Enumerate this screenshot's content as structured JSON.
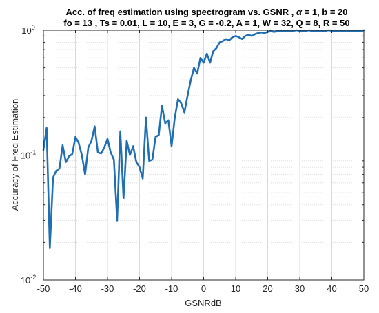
{
  "chart_data": {
    "type": "line",
    "title": {
      "line1_prefix": "Acc. of freq estimation using spectrogram vs. GSNR ,",
      "line1_symbol": "α",
      "line1_suffix": "= 1, b = 20",
      "line2": "fo = 13 , Ts = 0.01,   L = 10,   E = 3, G = -0.2,   A = 1, W = 32, Q = 8, R = 50"
    },
    "xlabel": "GSNRdB",
    "ylabel": "Accuracy of Freq Estimation",
    "xlim": [
      -50,
      50
    ],
    "ylim": [
      0.01,
      1
    ],
    "yscale": "log",
    "grid": true,
    "x_ticks": [
      "-50",
      "-40",
      "-30",
      "-20",
      "-10",
      "0",
      "10",
      "20",
      "30",
      "40",
      "50"
    ],
    "x_tick_values": [
      -50,
      -40,
      -30,
      -20,
      -10,
      0,
      10,
      20,
      30,
      40,
      50
    ],
    "y_ticks": [
      {
        "value": 0.01,
        "base": "10",
        "exp": "-2"
      },
      {
        "value": 0.1,
        "base": "10",
        "exp": "-1"
      },
      {
        "value": 1,
        "base": "10",
        "exp": "0"
      }
    ],
    "line_color": "#1f6fb2",
    "series": [
      {
        "x": [
          -50,
          -49,
          -48,
          -47,
          -46,
          -45,
          -44,
          -43,
          -42,
          -41,
          -40,
          -39,
          -38,
          -37,
          -36,
          -35,
          -34,
          -33,
          -32,
          -31,
          -30,
          -29,
          -28,
          -27,
          -26,
          -25,
          -24,
          -23,
          -22,
          -21,
          -20,
          -19,
          -18,
          -17,
          -16,
          -15,
          -14,
          -13,
          -12,
          -11,
          -10,
          -9,
          -8,
          -7,
          -6,
          -5,
          -4,
          -3,
          -2,
          -1,
          0,
          1,
          2,
          3,
          4,
          5,
          6,
          7,
          8,
          9,
          10,
          11,
          12,
          13,
          14,
          15,
          16,
          17,
          18,
          19,
          20,
          21,
          22,
          23,
          24,
          25,
          26,
          27,
          28,
          29,
          30,
          31,
          32,
          33,
          34,
          35,
          36,
          37,
          38,
          39,
          40,
          41,
          42,
          43,
          44,
          45,
          46,
          47,
          48,
          49,
          50
        ],
        "y": [
          0.11,
          0.165,
          0.018,
          0.066,
          0.075,
          0.078,
          0.12,
          0.088,
          0.098,
          0.102,
          0.14,
          0.125,
          0.1,
          0.07,
          0.115,
          0.13,
          0.17,
          0.105,
          0.103,
          0.115,
          0.135,
          0.105,
          0.092,
          0.03,
          0.155,
          0.045,
          0.13,
          0.1,
          0.118,
          0.088,
          0.08,
          0.065,
          0.2,
          0.09,
          0.092,
          0.14,
          0.145,
          0.25,
          0.18,
          0.19,
          0.118,
          0.2,
          0.28,
          0.26,
          0.22,
          0.3,
          0.4,
          0.5,
          0.45,
          0.6,
          0.55,
          0.65,
          0.55,
          0.68,
          0.72,
          0.8,
          0.82,
          0.85,
          0.83,
          0.88,
          0.9,
          0.88,
          0.85,
          0.9,
          0.92,
          0.9,
          0.93,
          0.95,
          0.96,
          0.95,
          0.97,
          0.98,
          0.97,
          0.98,
          0.99,
          0.98,
          0.99,
          0.98,
          0.99,
          1.0,
          0.99,
          0.98,
          0.99,
          1.0,
          0.98,
          0.99,
          0.99,
          0.98,
          0.99,
          1.0,
          0.99,
          0.98,
          0.99,
          0.99,
          0.98,
          0.99,
          0.98,
          0.98,
          0.99,
          0.98,
          1.0
        ]
      }
    ]
  }
}
